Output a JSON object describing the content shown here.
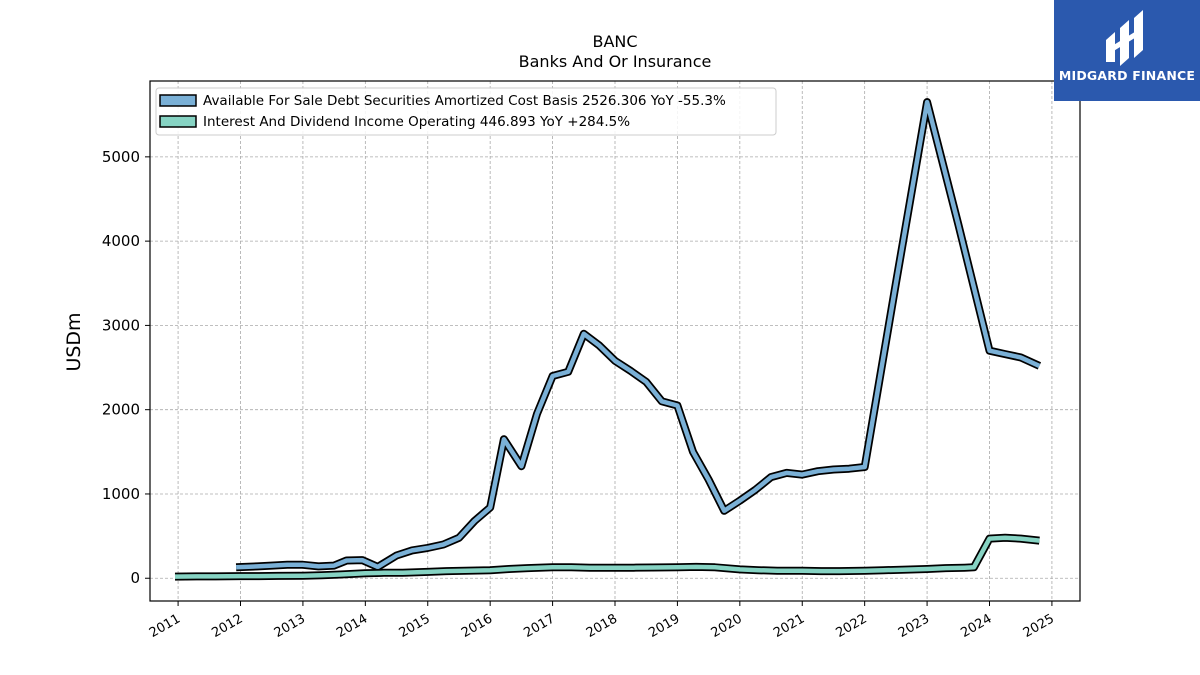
{
  "chart_data": {
    "type": "line",
    "title": "BANC",
    "subtitle": "Banks And Or Insurance",
    "xlabel": "",
    "ylabel": "USDm",
    "ylim": [
      -270,
      5900
    ],
    "xlim": [
      2010.55,
      2025.45
    ],
    "x_ticks": [
      "2011",
      "2012",
      "2013",
      "2014",
      "2015",
      "2016",
      "2017",
      "2018",
      "2019",
      "2020",
      "2021",
      "2022",
      "2023",
      "2024",
      "2025"
    ],
    "y_ticks": [
      0,
      1000,
      2000,
      3000,
      4000,
      5000
    ],
    "grid": true,
    "legend_placement": "top-left",
    "series": [
      {
        "name": "Available For Sale Debt Securities Amortized Cost Basis",
        "legend_value": "2526.306 YoY -55.3%",
        "color": "#7ab0d6",
        "x": [
          2011.93,
          2012.27,
          2012.5,
          2012.75,
          2013.0,
          2013.25,
          2013.5,
          2013.7,
          2013.95,
          2014.2,
          2014.5,
          2014.75,
          2015.0,
          2015.25,
          2015.5,
          2015.75,
          2016.0,
          2016.22,
          2016.5,
          2016.75,
          2017.0,
          2017.25,
          2017.5,
          2017.75,
          2018.0,
          2018.25,
          2018.5,
          2018.75,
          2019.0,
          2019.25,
          2019.5,
          2019.75,
          2020.0,
          2020.25,
          2020.5,
          2020.75,
          2021.0,
          2021.25,
          2021.5,
          2021.75,
          2022.0,
          2022.5,
          2023.0,
          2023.5,
          2024.0,
          2024.25,
          2024.5,
          2024.8
        ],
        "y": [
          130,
          140,
          150,
          160,
          160,
          140,
          150,
          210,
          215,
          135,
          270,
          330,
          360,
          400,
          480,
          680,
          840,
          1650,
          1330,
          1950,
          2400,
          2450,
          2900,
          2760,
          2580,
          2460,
          2330,
          2100,
          2050,
          1500,
          1170,
          800,
          920,
          1050,
          1200,
          1250,
          1230,
          1270,
          1290,
          1300,
          1320,
          3500,
          5650,
          4200,
          2700,
          2660,
          2620,
          2520
        ]
      },
      {
        "name": "Interest And Dividend Income Operating",
        "legend_value": "446.893 YoY +284.5%",
        "color": "#86d3c3",
        "x": [
          2010.95,
          2011.3,
          2011.6,
          2012.0,
          2012.3,
          2012.6,
          2013.0,
          2013.3,
          2013.6,
          2014.0,
          2014.3,
          2014.6,
          2015.0,
          2015.3,
          2015.6,
          2016.0,
          2016.3,
          2016.6,
          2017.0,
          2017.3,
          2017.6,
          2018.0,
          2018.3,
          2018.6,
          2019.0,
          2019.3,
          2019.6,
          2020.0,
          2020.3,
          2020.6,
          2021.0,
          2021.3,
          2021.6,
          2022.0,
          2022.3,
          2022.6,
          2023.0,
          2023.3,
          2023.6,
          2023.75,
          2024.0,
          2024.25,
          2024.5,
          2024.8
        ],
        "y": [
          20,
          22,
          22,
          25,
          25,
          28,
          30,
          35,
          45,
          60,
          65,
          65,
          75,
          85,
          90,
          95,
          110,
          120,
          130,
          130,
          125,
          125,
          125,
          128,
          130,
          135,
          130,
          105,
          95,
          90,
          90,
          85,
          85,
          90,
          95,
          100,
          110,
          120,
          125,
          130,
          470,
          480,
          470,
          447
        ]
      }
    ]
  },
  "logo": {
    "text": "MIDGARD FINANCE"
  }
}
